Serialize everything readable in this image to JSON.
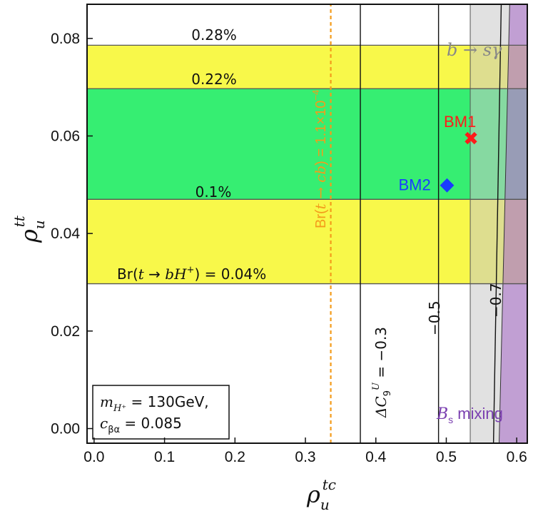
{
  "chart_data": {
    "type": "region-plot",
    "xlabel": "ρ_u^tc",
    "ylabel": "ρ_u^tt",
    "xlim": [
      -0.01,
      0.615
    ],
    "ylim": [
      -0.003,
      0.087
    ],
    "xticks": [
      "0.0",
      "0.1",
      "0.2",
      "0.3",
      "0.4",
      "0.5",
      "0.6"
    ],
    "xtick_values": [
      0.0,
      0.1,
      0.2,
      0.3,
      0.4,
      0.5,
      0.6
    ],
    "yticks": [
      "0.00",
      "0.02",
      "0.04",
      "0.06",
      "0.08"
    ],
    "ytick_values": [
      0.0,
      0.02,
      0.04,
      0.06,
      0.08
    ],
    "br_bands": [
      {
        "name": "yellow-band-lower",
        "y0": 0.0297,
        "y1": 0.047,
        "color": "#f8f84a"
      },
      {
        "name": "green-band",
        "y0": 0.047,
        "y1": 0.0697,
        "color": "#36ee72"
      },
      {
        "name": "yellow-band-upper",
        "y0": 0.0697,
        "y1": 0.0786,
        "color": "#f8f84a"
      }
    ],
    "br_contours": [
      {
        "label": "0.28%",
        "y": 0.0786
      },
      {
        "label": "0.22%",
        "y": 0.0697
      },
      {
        "label": "0.1%",
        "y": 0.047
      },
      {
        "label_prefix": "Br(",
        "label_t": "t",
        "label_arrow": " → ",
        "label_bH": "bH",
        "label_plus": "+",
        "label_suffix": ") = 0.04%",
        "y": 0.0297
      }
    ],
    "delta_c9_contours": [
      {
        "x": 0.378,
        "label_prefix": "ΔC",
        "label_sub": "9",
        "label_sup": "U",
        "label_suffix": " = −0.3"
      },
      {
        "x": 0.489,
        "label": "−0.5"
      },
      {
        "x_bottom": 0.567,
        "x_top": 0.578,
        "label": "−0.7"
      }
    ],
    "bsgamma_region": {
      "label": "b → sγ",
      "x_bottom": 0.534,
      "x_top": 0.534,
      "color": "#c8c8c8"
    },
    "bs_mixing_region": {
      "label_italic": "B",
      "label_sub": "s",
      "label_suffix": " mixing",
      "x_bottom": 0.575,
      "x_top": 0.59,
      "color": "#a869c8"
    },
    "br_tcb_line": {
      "x": 0.336,
      "label_prefix": "Br(",
      "label_italic": "t → cb",
      "label_suffix": ") = 1.1×10",
      "label_exp": "−4",
      "color": "#f39c1b"
    },
    "benchmarks": [
      {
        "name": "BM1",
        "x": 0.535,
        "y": 0.0595,
        "marker": "✖",
        "color": "#ff1a1a"
      },
      {
        "name": "BM2",
        "x": 0.501,
        "y": 0.0502,
        "marker": "◆",
        "color": "#1a3cff"
      }
    ],
    "legend": {
      "line1_prefix": "m",
      "line1_sub": "H⁺",
      "line1_suffix": " = 130GeV,",
      "line2_prefix": "c",
      "line2_sub": "βα",
      "line2_suffix": " = 0.085",
      "position": "bottom-left"
    }
  }
}
